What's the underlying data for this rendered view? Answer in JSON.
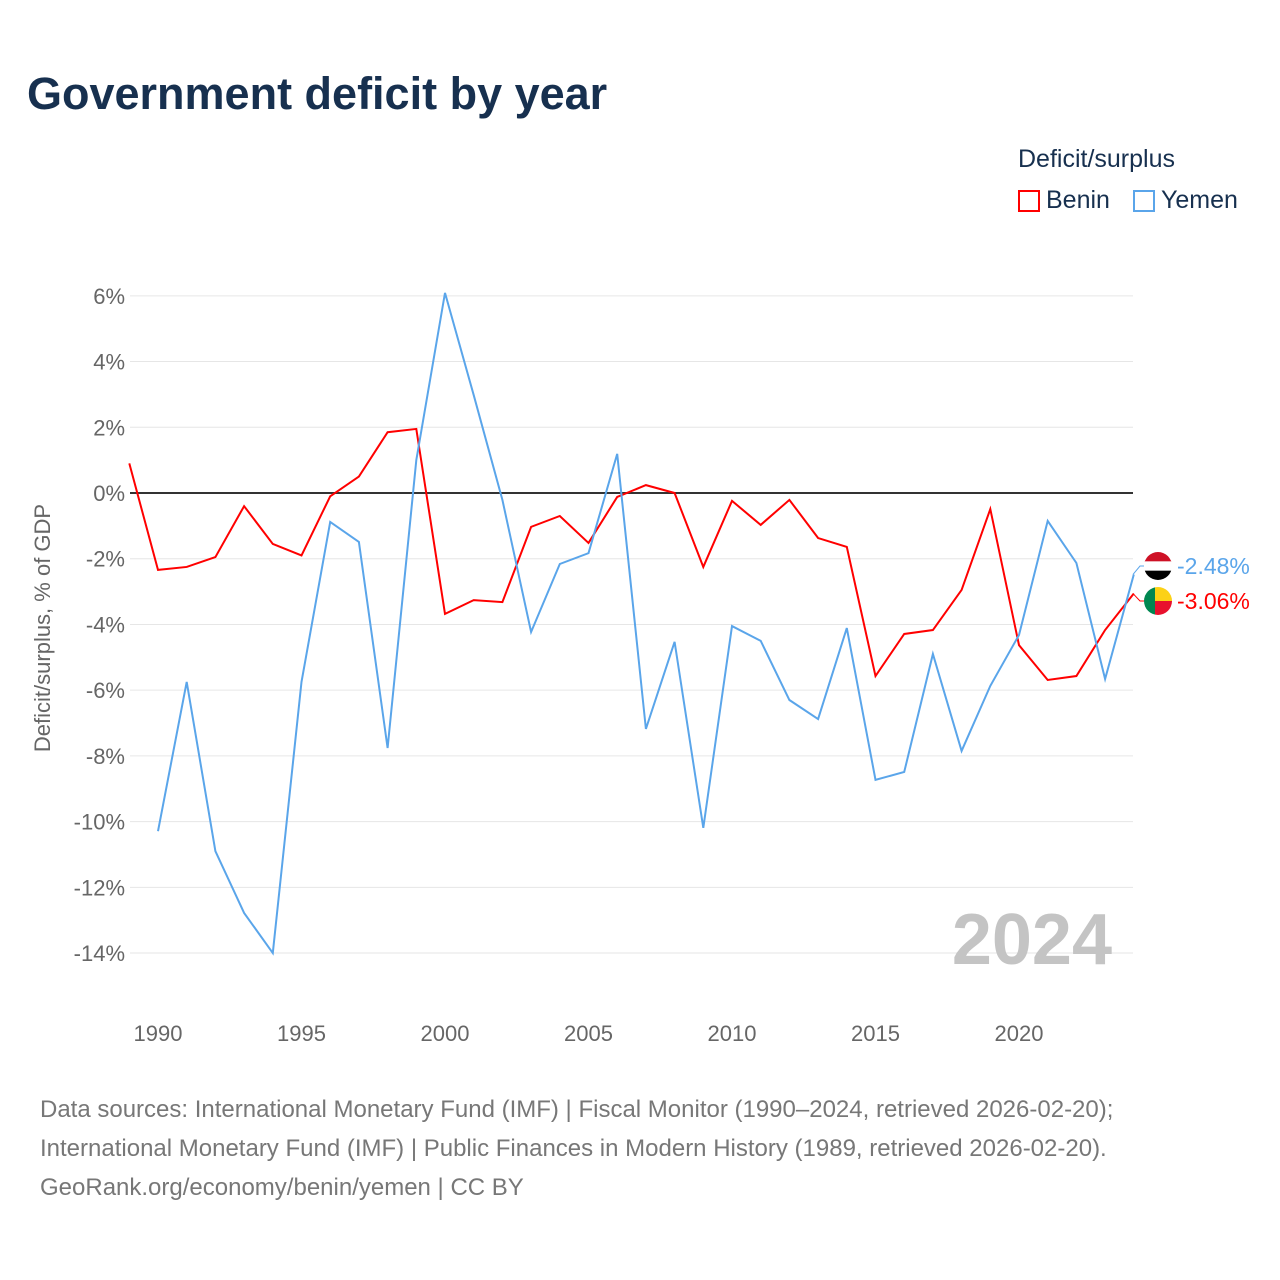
{
  "title": "Government deficit by year",
  "footer": {
    "line1": "Data sources: International Monetary Fund (IMF) | Fiscal Monitor (1990–2024, retrieved 2026-02-20);",
    "line2": "International Monetary Fund (IMF) | Public Finances in Modern History (1989, retrieved 2026-02-20).",
    "line3": "GeoRank.org/economy/benin/yemen | CC BY"
  },
  "chart_data": {
    "type": "line",
    "title": "Government deficit by year",
    "ylabel": "Deficit/surplus, % of GDP",
    "xlabel": "",
    "legend_title": "Deficit/surplus",
    "legend_position": "top-right",
    "year_watermark": "2024",
    "xlim": [
      1989,
      2024
    ],
    "ylim": [
      -14,
      6
    ],
    "x_ticks": [
      1990,
      1995,
      2000,
      2005,
      2010,
      2015,
      2020
    ],
    "y_ticks": [
      6,
      4,
      2,
      0,
      -2,
      -4,
      -6,
      -8,
      -10,
      -12,
      -14
    ],
    "y_tick_labels": [
      "6%",
      "4%",
      "2%",
      "0%",
      "-2%",
      "-4%",
      "-6%",
      "-8%",
      "-10%",
      "-12%",
      "-14%"
    ],
    "series": [
      {
        "name": "Benin",
        "color": "#ff0000",
        "end_label": "-3.06%",
        "start_year": 1989,
        "values": [
          0.9,
          -2.34,
          -2.25,
          -1.95,
          -0.4,
          -1.55,
          -1.9,
          -0.1,
          0.5,
          1.85,
          1.95,
          -3.68,
          -3.26,
          -3.32,
          -1.03,
          -0.7,
          -1.52,
          -0.12,
          0.24,
          0.0,
          -2.25,
          -0.24,
          -0.97,
          -0.21,
          -1.37,
          -1.64,
          -5.57,
          -4.29,
          -4.17,
          -2.95,
          -0.49,
          -4.63,
          -5.69,
          -5.57,
          -4.17,
          -3.06
        ]
      },
      {
        "name": "Yemen",
        "color": "#5aa5ea",
        "end_label": "-2.48%",
        "start_year": 1990,
        "values": [
          -10.29,
          -5.75,
          -10.9,
          -12.78,
          -14.0,
          -5.75,
          -0.88,
          -1.49,
          -7.76,
          1.0,
          6.09,
          2.98,
          -0.21,
          -4.23,
          -2.16,
          -1.83,
          1.19,
          -7.18,
          -4.53,
          -10.19,
          -4.05,
          -4.5,
          -6.3,
          -6.88,
          -4.11,
          -8.73,
          -8.49,
          -4.9,
          -7.85,
          -5.87,
          -4.32,
          -0.85,
          -2.13,
          -5.66,
          -2.48
        ]
      }
    ]
  }
}
